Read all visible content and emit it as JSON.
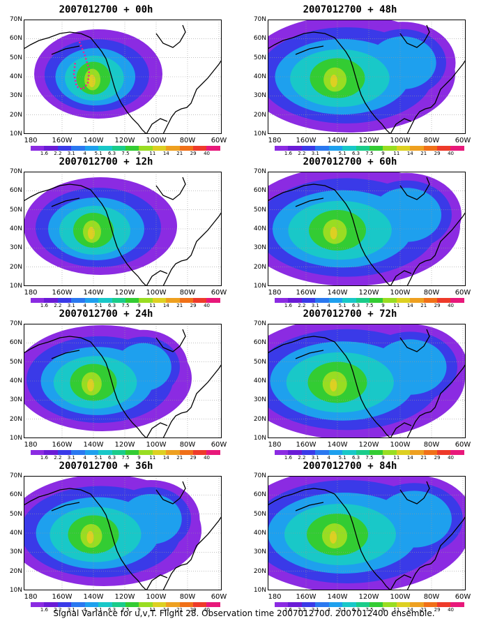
{
  "panels": [
    {
      "title": "2007012700 + 00h",
      "col": 0,
      "row": 0,
      "spread": 0.35,
      "track": true
    },
    {
      "title": "2007012700 + 12h",
      "col": 0,
      "row": 1,
      "spread": 0.5,
      "track": false
    },
    {
      "title": "2007012700 + 24h",
      "col": 0,
      "row": 2,
      "spread": 0.65,
      "track": false
    },
    {
      "title": "2007012700 + 36h",
      "col": 0,
      "row": 3,
      "spread": 0.75,
      "track": false
    },
    {
      "title": "2007012700 + 48h",
      "col": 1,
      "row": 0,
      "spread": 0.85,
      "track": false
    },
    {
      "title": "2007012700 + 60h",
      "col": 1,
      "row": 1,
      "spread": 0.9,
      "track": false
    },
    {
      "title": "2007012700 + 72h",
      "col": 1,
      "row": 2,
      "spread": 0.95,
      "track": false
    },
    {
      "title": "2007012700 + 84h",
      "col": 1,
      "row": 3,
      "spread": 1.0,
      "track": false
    }
  ],
  "lat_labels": [
    "70N",
    "60N",
    "50N",
    "40N",
    "30N",
    "20N",
    "10N"
  ],
  "lon_labels": [
    "180",
    "160W",
    "140W",
    "120W",
    "100W",
    "80W",
    "60W"
  ],
  "colorbar": {
    "values": [
      "1.6",
      "2.2",
      "3.1",
      "4",
      "5.1",
      "6.3",
      "7.5",
      "9",
      "11",
      "14",
      "21",
      "29",
      "40"
    ],
    "colors": [
      "#8b2be2",
      "#6a1bd6",
      "#3a3ae8",
      "#2a78f0",
      "#1ea0ee",
      "#19c8c8",
      "#1acc8a",
      "#33cc33",
      "#99dd22",
      "#ddd022",
      "#eea020",
      "#f07018",
      "#ee3a2a",
      "#e8187a"
    ]
  },
  "footer": "Signal Variance for u,v,T. Flight 28. Observation time 2007012700. 2007012400 ensemble."
}
